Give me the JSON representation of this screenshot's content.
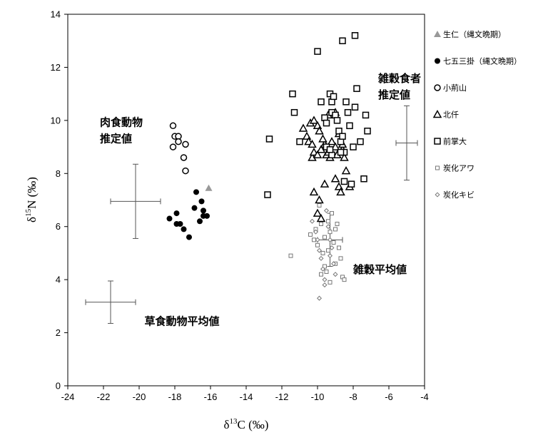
{
  "chart_data": {
    "type": "scatter",
    "title": "",
    "xlabel": {
      "delta": "δ",
      "sup": "13",
      "rest": "C (‰)"
    },
    "ylabel": {
      "delta": "δ",
      "sup": "15",
      "rest": "N (‰)"
    },
    "xlim": [
      -24,
      -4
    ],
    "ylim": [
      0,
      14
    ],
    "x_ticks": [
      -24,
      -22,
      -20,
      -18,
      -16,
      -14,
      -12,
      -10,
      -8,
      -6,
      -4
    ],
    "y_ticks": [
      0,
      2,
      4,
      6,
      8,
      10,
      12,
      14
    ],
    "grid": false,
    "legend_position": "right",
    "series": [
      {
        "name": "生仁（縄文晩期）",
        "marker": "triangle-filled",
        "color": "#999999",
        "points": [
          [
            -16.1,
            7.45
          ]
        ]
      },
      {
        "name": "七五三掛（縄文晩期）",
        "marker": "circle-filled",
        "color": "#000000",
        "points": [
          [
            -18.3,
            6.3
          ],
          [
            -17.9,
            6.5
          ],
          [
            -17.9,
            6.1
          ],
          [
            -17.7,
            6.1
          ],
          [
            -17.5,
            5.9
          ],
          [
            -17.2,
            5.6
          ],
          [
            -16.9,
            6.7
          ],
          [
            -16.8,
            7.3
          ],
          [
            -16.6,
            6.2
          ],
          [
            -16.5,
            6.95
          ],
          [
            -16.4,
            6.6
          ],
          [
            -16.4,
            6.4
          ],
          [
            -16.2,
            6.4
          ]
        ]
      },
      {
        "name": "小荊山",
        "marker": "circle-open",
        "color": "#000000",
        "points": [
          [
            -18.1,
            9.8
          ],
          [
            -18.0,
            9.4
          ],
          [
            -17.8,
            9.4
          ],
          [
            -18.1,
            9.0
          ],
          [
            -17.8,
            9.2
          ],
          [
            -17.4,
            9.1
          ],
          [
            -17.5,
            8.6
          ],
          [
            -17.4,
            8.1
          ]
        ]
      },
      {
        "name": "北仟",
        "marker": "triangle-open",
        "color": "#000000",
        "points": [
          [
            -10.8,
            9.7
          ],
          [
            -10.6,
            9.4
          ],
          [
            -10.4,
            9.9
          ],
          [
            -10.5,
            9.2
          ],
          [
            -10.3,
            9.1
          ],
          [
            -10.2,
            10.0
          ],
          [
            -10.0,
            9.8
          ],
          [
            -9.9,
            9.6
          ],
          [
            -10.3,
            8.6
          ],
          [
            -10.2,
            8.8
          ],
          [
            -10.0,
            8.7
          ],
          [
            -9.8,
            8.9
          ],
          [
            -9.6,
            9.1
          ],
          [
            -9.5,
            8.7
          ],
          [
            -9.4,
            8.8
          ],
          [
            -9.3,
            8.6
          ],
          [
            -9.2,
            9.2
          ],
          [
            -9.0,
            9.0
          ],
          [
            -8.9,
            8.7
          ],
          [
            -8.8,
            9.5
          ],
          [
            -8.6,
            8.9
          ],
          [
            -8.5,
            8.6
          ],
          [
            -8.4,
            8.1
          ],
          [
            -8.6,
            9.1
          ],
          [
            -8.2,
            7.5
          ],
          [
            -9.7,
            9.3
          ],
          [
            -9.4,
            10.2
          ],
          [
            -9.0,
            10.3
          ],
          [
            -10.2,
            7.3
          ],
          [
            -9.9,
            7.0
          ],
          [
            -9.6,
            7.6
          ],
          [
            -9.0,
            7.8
          ],
          [
            -8.8,
            7.5
          ],
          [
            -8.7,
            7.3
          ],
          [
            -10.0,
            6.5
          ],
          [
            -9.8,
            6.3
          ]
        ]
      },
      {
        "name": "前掌大",
        "marker": "square-open",
        "color": "#000000",
        "points": [
          [
            -12.8,
            7.2
          ],
          [
            -12.7,
            9.3
          ],
          [
            -11.4,
            11.0
          ],
          [
            -11.3,
            10.3
          ],
          [
            -11.0,
            9.2
          ],
          [
            -10.0,
            12.6
          ],
          [
            -9.8,
            10.7
          ],
          [
            -9.6,
            10.1
          ],
          [
            -9.5,
            9.9
          ],
          [
            -9.3,
            11.0
          ],
          [
            -9.2,
            10.7
          ],
          [
            -9.1,
            10.9
          ],
          [
            -9.2,
            10.3
          ],
          [
            -9.0,
            10.2
          ],
          [
            -8.9,
            10.0
          ],
          [
            -8.8,
            9.6
          ],
          [
            -8.7,
            9.2
          ],
          [
            -8.6,
            9.4
          ],
          [
            -8.5,
            8.8
          ],
          [
            -8.4,
            10.7
          ],
          [
            -8.3,
            10.3
          ],
          [
            -8.2,
            9.8
          ],
          [
            -8.0,
            9.0
          ],
          [
            -7.9,
            10.5
          ],
          [
            -7.8,
            11.2
          ],
          [
            -7.6,
            9.2
          ],
          [
            -7.3,
            10.2
          ],
          [
            -7.2,
            9.6
          ],
          [
            -7.4,
            7.8
          ],
          [
            -8.5,
            7.7
          ],
          [
            -8.1,
            7.6
          ],
          [
            -8.6,
            13.0
          ],
          [
            -7.9,
            13.2
          ],
          [
            -9.2,
            8.7
          ],
          [
            -8.7,
            8.8
          ],
          [
            -9.5,
            9.0
          ],
          [
            -9.3,
            8.9
          ]
        ]
      },
      {
        "name": "炭化アワ",
        "marker": "square-small",
        "color": "#777777",
        "points": [
          [
            -11.5,
            4.9
          ],
          [
            -10.4,
            5.7
          ],
          [
            -10.2,
            5.5
          ],
          [
            -10.0,
            5.3
          ],
          [
            -9.9,
            6.8
          ],
          [
            -9.8,
            6.1
          ],
          [
            -9.7,
            5.0
          ],
          [
            -9.6,
            4.5
          ],
          [
            -9.4,
            6.2
          ],
          [
            -9.3,
            5.8
          ],
          [
            -9.2,
            6.5
          ],
          [
            -9.1,
            5.4
          ],
          [
            -9.0,
            5.9
          ],
          [
            -8.9,
            6.1
          ],
          [
            -8.8,
            5.2
          ],
          [
            -8.7,
            4.8
          ],
          [
            -9.5,
            4.3
          ],
          [
            -9.3,
            3.9
          ],
          [
            -8.6,
            4.1
          ],
          [
            -8.5,
            4.0
          ],
          [
            -9.0,
            4.6
          ],
          [
            -9.8,
            4.2
          ],
          [
            -10.1,
            5.9
          ],
          [
            -9.6,
            5.6
          ],
          [
            -9.4,
            5.1
          ]
        ]
      },
      {
        "name": "炭化キビ",
        "marker": "diamond-small",
        "color": "#777777",
        "points": [
          [
            -10.3,
            6.2
          ],
          [
            -10.1,
            5.8
          ],
          [
            -10.0,
            5.5
          ],
          [
            -9.9,
            5.1
          ],
          [
            -9.8,
            4.8
          ],
          [
            -9.7,
            4.4
          ],
          [
            -9.6,
            4.0
          ],
          [
            -9.5,
            6.6
          ],
          [
            -9.4,
            6.0
          ],
          [
            -9.3,
            5.5
          ],
          [
            -9.2,
            5.2
          ],
          [
            -9.1,
            4.6
          ],
          [
            -9.0,
            4.2
          ],
          [
            -9.9,
            3.3
          ],
          [
            -9.6,
            3.8
          ],
          [
            -9.3,
            4.9
          ]
        ]
      }
    ],
    "error_crosses": [
      {
        "x": -20.2,
        "y": 6.95,
        "xerr": 1.4,
        "yerr": 1.4
      },
      {
        "x": -21.6,
        "y": 3.15,
        "xerr": 1.4,
        "yerr": 0.8
      },
      {
        "x": -5.0,
        "y": 9.15,
        "xerr": 0.6,
        "yerr": 1.4
      },
      {
        "x": -9.3,
        "y": 5.5,
        "xerr": 0.7,
        "yerr": 1.0
      }
    ],
    "annotations": [
      {
        "lines": [
          "肉食動物",
          "推定値"
        ],
        "x": -22.2,
        "y": 9.8
      },
      {
        "lines": [
          "雑穀食者",
          "推定値"
        ],
        "x": -6.6,
        "y": 11.45
      },
      {
        "lines": [
          "雑穀平均値"
        ],
        "x": -8.0,
        "y": 4.25
      },
      {
        "lines": [
          "草食動物平均値"
        ],
        "x": -19.7,
        "y": 2.3
      }
    ]
  }
}
